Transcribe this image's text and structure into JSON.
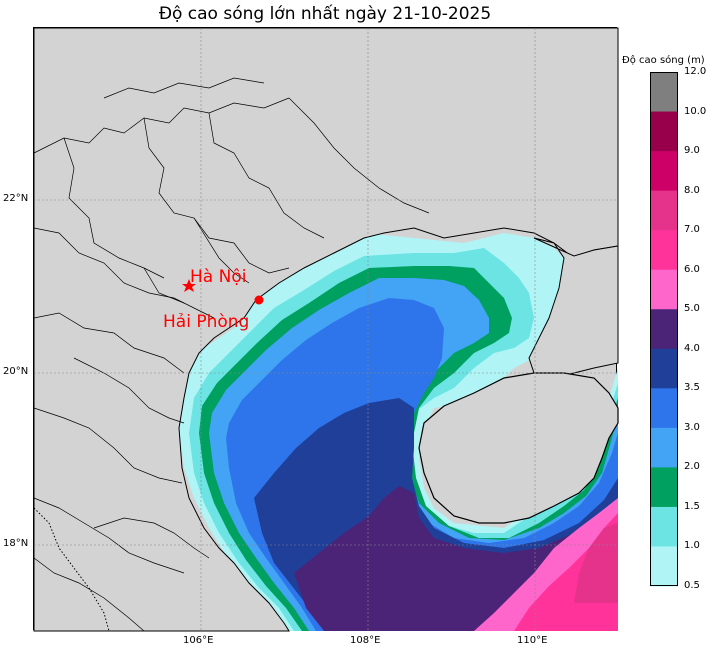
{
  "title": "Độ cao sóng lớn nhất ngày 21-10-2025",
  "lat_labels": [
    "22°N",
    "20°N",
    "18°N"
  ],
  "lon_labels": [
    "106°E",
    "108°E",
    "110°E"
  ],
  "cities": [
    {
      "name": "Hà Nội",
      "marker": "star"
    },
    {
      "name": "Hải Phòng",
      "marker": "circle"
    }
  ],
  "colorbar": {
    "title": "Độ cao sóng (m)",
    "labels": [
      "12.0",
      "10.0",
      "9.0",
      "8.0",
      "7.0",
      "6.0",
      "5.0",
      "4.0",
      "3.5",
      "3.0",
      "2.0",
      "1.5",
      "1.0",
      "0.5"
    ],
    "colors": [
      "#7f7f7f",
      "#99004c",
      "#cc0066",
      "#e5338c",
      "#ff3399",
      "#ff66cc",
      "#4b2478",
      "#1f3f99",
      "#2e75eb",
      "#43a3f5",
      "#00a060",
      "#6ce4e4",
      "#b0f4f6"
    ]
  },
  "colors": {
    "land": "#d3d3d3",
    "marker": "#ff0000"
  }
}
